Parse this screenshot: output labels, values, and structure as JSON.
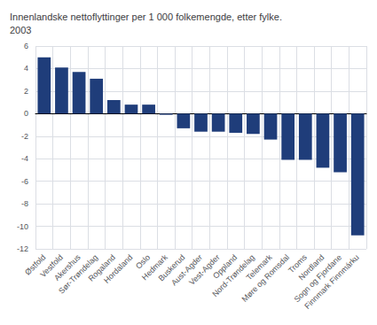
{
  "chart_data": {
    "type": "bar",
    "title": "Innenlandske nettoflyttinger per 1 000 folkemengde, etter fylke.\n2003",
    "categories": [
      "Østfold",
      "Vestfold",
      "Akershus",
      "Sør-Trøndelag",
      "Rogaland",
      "Hordaland",
      "Oslo",
      "Hedmark",
      "Buskerud",
      "Aust-Agder",
      "Vest-Agder",
      "Oppland",
      "Nord-Trøndelag",
      "Telemark",
      "Møre og Romsdal",
      "Troms",
      "Nordland",
      "Sogn og Fjordane",
      "Finnmark Finnmárku"
    ],
    "values": [
      5.0,
      4.1,
      3.7,
      3.1,
      1.2,
      0.8,
      0.8,
      -0.1,
      -1.3,
      -1.6,
      -1.6,
      -1.7,
      -1.8,
      -2.3,
      -4.1,
      -4.1,
      -4.8,
      -5.2,
      -10.8
    ],
    "color": "#1f3d7a",
    "ylim": [
      -12,
      6
    ],
    "yticks": [
      -12,
      -10,
      -8,
      -6,
      -4,
      -2,
      0,
      2,
      4,
      6
    ],
    "grid": true
  }
}
